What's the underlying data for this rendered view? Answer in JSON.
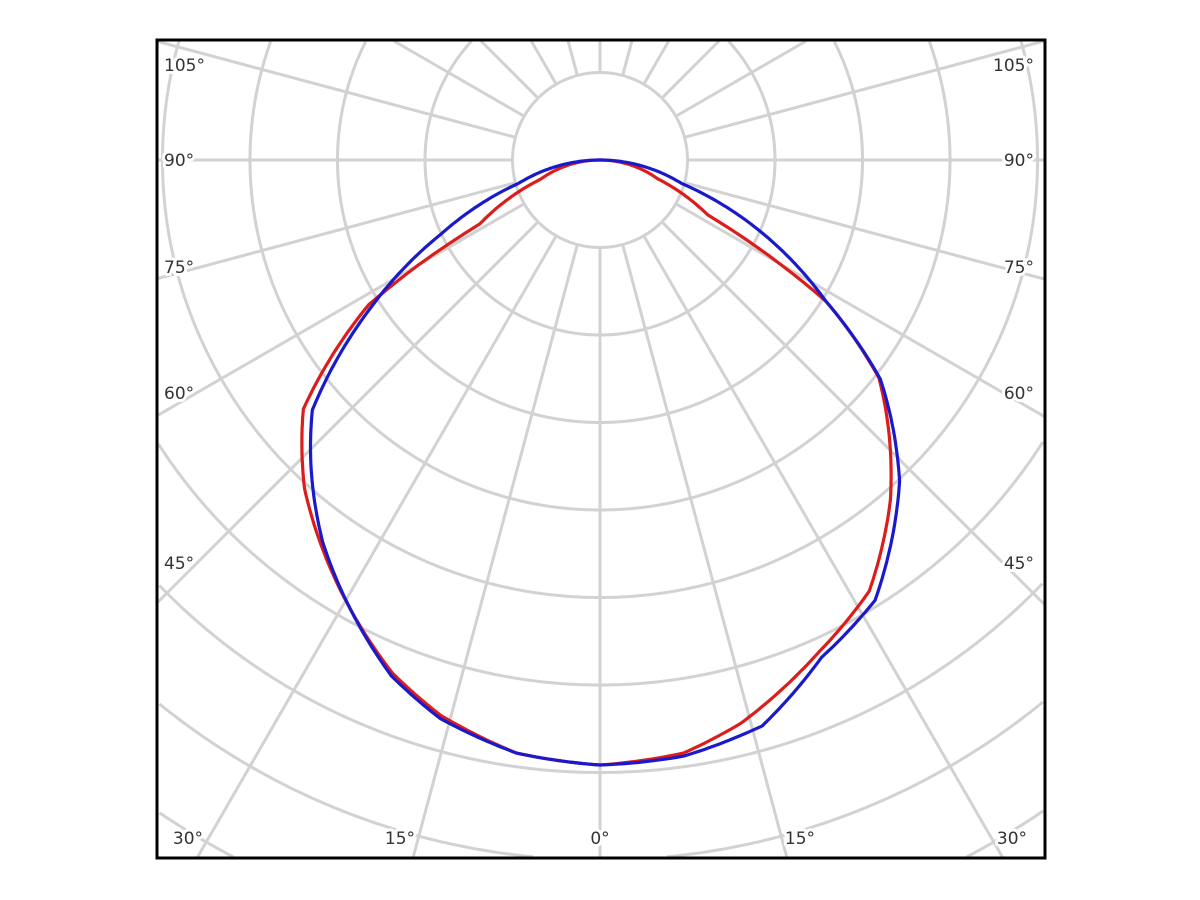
{
  "chart_data": {
    "type": "polar",
    "title": "",
    "grid": true,
    "angle_zero_direction": "down",
    "angle_labels": {
      "left": [
        "105°",
        "90°",
        "75°",
        "60°",
        "45°"
      ],
      "right": [
        "105°",
        "90°",
        "75°",
        "60°",
        "45°"
      ],
      "bottom": [
        "30°",
        "15°",
        "0°",
        "15°",
        "30°"
      ]
    },
    "radial_unit": "relative intensity (0° = 1.0)",
    "series": [
      {
        "color": "#dd1c1c",
        "left": {
          "angles": [
            0,
            8,
            16,
            22,
            36,
            42,
            50,
            58,
            60,
            62,
            72,
            90
          ],
          "values": [
            1.0,
            0.99,
            0.955,
            0.915,
            0.785,
            0.73,
            0.64,
            0.45,
            0.345,
            0.225,
            0.104,
            0
          ]
        },
        "right": {
          "angles": [
            0,
            8,
            14,
            24,
            32,
            40.5,
            52,
            58,
            63,
            72,
            90
          ],
          "values": [
            1.0,
            0.99,
            0.96,
            0.89,
            0.84,
            0.739,
            0.585,
            0.44,
            0.2,
            0.1,
            0
          ]
        }
      },
      {
        "color": "#1a1acc",
        "left": {
          "angles": [
            0,
            8,
            16,
            22,
            36,
            43,
            49,
            57,
            65,
            74,
            90
          ],
          "values": [
            1.0,
            0.99,
            0.96,
            0.92,
            0.78,
            0.7,
            0.63,
            0.455,
            0.29,
            0.14,
            0
          ]
        },
        "right": {
          "angles": [
            0,
            8,
            16,
            24,
            32,
            43,
            52,
            58,
            66,
            74,
            90
          ],
          "values": [
            1.0,
            0.995,
            0.973,
            0.9,
            0.858,
            0.726,
            0.588,
            0.44,
            0.29,
            0.14,
            0
          ]
        }
      }
    ]
  }
}
